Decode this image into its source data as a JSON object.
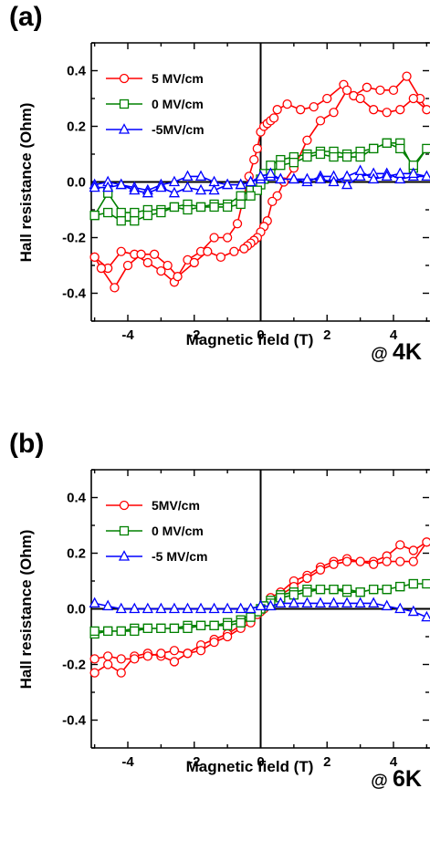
{
  "panels": [
    {
      "label": "(a)",
      "temp_label_prefix": "@ ",
      "temp_label_value": "4K"
    },
    {
      "label": "(b)",
      "temp_label_prefix": "@ ",
      "temp_label_value": "6K"
    }
  ],
  "chart_data": [
    {
      "type": "line",
      "panel": "(a)",
      "xlabel": "Magnetic field (T)",
      "ylabel": "Hall resistance (Ohm)",
      "xlim": [
        -5.1,
        5.1
      ],
      "ylim": [
        -0.5,
        0.5
      ],
      "xticks": [
        -4,
        -2,
        0,
        2,
        4
      ],
      "xtick_labels": [
        "-4",
        "-2",
        "0",
        "2",
        "4"
      ],
      "yticks": [
        -0.4,
        -0.2,
        0.0,
        0.2,
        0.4
      ],
      "ytick_labels": [
        "-0.4",
        "-0.2",
        "0.0",
        "0.2",
        "0.4"
      ],
      "legend_position": "top-left",
      "annotation": "@ 4K",
      "series": [
        {
          "name": "5 MV/cm",
          "color": "#ff0000",
          "marker": "circle",
          "x": [
            -5.0,
            -4.6,
            -4.2,
            -3.8,
            -3.4,
            -3.0,
            -2.6,
            -2.2,
            -1.8,
            -1.4,
            -1.0,
            -0.7,
            -0.5,
            -0.35,
            -0.2,
            -0.1,
            0.0,
            0.1,
            0.2,
            0.3,
            0.4,
            0.5,
            0.8,
            1.2,
            1.6,
            2.0,
            2.5,
            2.8,
            3.2,
            3.6,
            4.0,
            4.4,
            4.8,
            5.0,
            4.6,
            4.2,
            3.8,
            3.4,
            3.0,
            2.6,
            2.2,
            1.8,
            1.4,
            1.0,
            0.7,
            0.5,
            0.35,
            0.2,
            0.1,
            0.0,
            -0.1,
            -0.2,
            -0.3,
            -0.4,
            -0.5,
            -0.8,
            -1.2,
            -1.6,
            -2.0,
            -2.5,
            -2.8,
            -3.2,
            -3.6,
            -4.0,
            -4.4,
            -4.8,
            -5.0
          ],
          "y": [
            -0.27,
            -0.31,
            -0.25,
            -0.26,
            -0.29,
            -0.32,
            -0.36,
            -0.28,
            -0.25,
            -0.2,
            -0.2,
            -0.15,
            -0.05,
            0.02,
            0.08,
            0.12,
            0.18,
            0.2,
            0.21,
            0.22,
            0.23,
            0.26,
            0.28,
            0.26,
            0.27,
            0.3,
            0.35,
            0.31,
            0.34,
            0.33,
            0.33,
            0.38,
            0.3,
            0.26,
            0.3,
            0.26,
            0.25,
            0.26,
            0.3,
            0.33,
            0.25,
            0.22,
            0.15,
            0.05,
            0.0,
            -0.05,
            -0.07,
            -0.14,
            -0.16,
            -0.18,
            -0.2,
            -0.21,
            -0.22,
            -0.23,
            -0.24,
            -0.25,
            -0.27,
            -0.25,
            -0.29,
            -0.34,
            -0.3,
            -0.26,
            -0.26,
            -0.3,
            -0.38,
            -0.31,
            -0.27
          ]
        },
        {
          "name": "0 MV/cm",
          "color": "#008000",
          "marker": "square",
          "x": [
            -5.0,
            -4.6,
            -4.2,
            -3.8,
            -3.4,
            -3.0,
            -2.6,
            -2.2,
            -1.8,
            -1.4,
            -1.0,
            -0.6,
            -0.3,
            -0.1,
            0.0,
            0.1,
            0.3,
            0.6,
            1.0,
            1.4,
            1.8,
            2.2,
            2.6,
            3.0,
            3.4,
            3.8,
            4.2,
            4.6,
            5.0,
            4.6,
            4.2,
            3.8,
            3.4,
            3.0,
            2.6,
            2.2,
            1.8,
            1.4,
            1.0,
            0.6,
            0.3,
            0.1,
            0.0,
            -0.1,
            -0.3,
            -0.6,
            -1.0,
            -1.4,
            -1.8,
            -2.2,
            -2.6,
            -3.0,
            -3.4,
            -3.8,
            -4.2,
            -4.6,
            -5.0
          ],
          "y": [
            -0.12,
            -0.04,
            -0.11,
            -0.11,
            -0.1,
            -0.1,
            -0.09,
            -0.08,
            -0.09,
            -0.08,
            -0.08,
            -0.05,
            -0.03,
            -0.01,
            0.01,
            0.03,
            0.06,
            0.08,
            0.09,
            0.1,
            0.11,
            0.11,
            0.1,
            0.11,
            0.12,
            0.14,
            0.14,
            0.05,
            0.12,
            0.06,
            0.12,
            0.14,
            0.12,
            0.09,
            0.09,
            0.09,
            0.1,
            0.09,
            0.07,
            0.06,
            0.03,
            0.01,
            -0.01,
            -0.03,
            -0.05,
            -0.08,
            -0.09,
            -0.09,
            -0.09,
            -0.1,
            -0.09,
            -0.11,
            -0.12,
            -0.14,
            -0.14,
            -0.11,
            -0.12
          ]
        },
        {
          "name": "-5MV/cm",
          "color": "#0000ff",
          "marker": "triangle",
          "x": [
            -5.0,
            -4.6,
            -4.2,
            -3.8,
            -3.4,
            -3.0,
            -2.6,
            -2.2,
            -1.8,
            -1.4,
            -1.0,
            -0.6,
            -0.3,
            0.0,
            0.3,
            0.6,
            1.0,
            1.4,
            1.8,
            2.2,
            2.6,
            3.0,
            3.4,
            3.8,
            4.2,
            4.6,
            5.0,
            4.6,
            4.2,
            3.8,
            3.4,
            3.0,
            2.6,
            2.2,
            1.8,
            1.4,
            1.0,
            0.6,
            0.3,
            0.0,
            -0.3,
            -0.6,
            -1.0,
            -1.4,
            -1.8,
            -2.2,
            -2.6,
            -3.0,
            -3.4,
            -3.8,
            -4.2,
            -4.6,
            -5.0
          ],
          "y": [
            -0.01,
            0.0,
            -0.01,
            -0.02,
            -0.03,
            -0.01,
            0.0,
            0.02,
            0.02,
            0.0,
            -0.01,
            -0.01,
            0.0,
            0.01,
            0.02,
            0.01,
            0.01,
            0.0,
            0.02,
            0.02,
            -0.01,
            0.02,
            0.03,
            0.03,
            0.01,
            0.02,
            0.02,
            0.03,
            0.03,
            0.02,
            0.01,
            0.04,
            0.02,
            0.0,
            0.01,
            0.01,
            0.01,
            0.01,
            0.03,
            0.02,
            0.0,
            -0.01,
            -0.01,
            -0.03,
            -0.03,
            -0.02,
            -0.04,
            -0.02,
            -0.04,
            -0.03,
            -0.01,
            -0.02,
            -0.02
          ]
        }
      ]
    },
    {
      "type": "line",
      "panel": "(b)",
      "xlabel": "Magnetic field (T)",
      "ylabel": "Hall resistance (Ohm)",
      "xlim": [
        -5.1,
        5.1
      ],
      "ylim": [
        -0.5,
        0.5
      ],
      "xticks": [
        -4,
        -2,
        0,
        2,
        4
      ],
      "xtick_labels": [
        "-4",
        "-2",
        "0",
        "2",
        "4"
      ],
      "yticks": [
        -0.4,
        -0.2,
        0.0,
        0.2,
        0.4
      ],
      "ytick_labels": [
        "-0.4",
        "-0.2",
        "0.0",
        "0.2",
        "0.4"
      ],
      "legend_position": "top-left",
      "annotation": "@ 6K",
      "series": [
        {
          "name": "5MV/cm",
          "color": "#ff0000",
          "marker": "circle",
          "x": [
            -5.0,
            -4.6,
            -4.2,
            -3.8,
            -3.4,
            -3.0,
            -2.6,
            -2.2,
            -1.8,
            -1.4,
            -1.0,
            -0.6,
            -0.3,
            -0.1,
            0.0,
            0.1,
            0.3,
            0.6,
            1.0,
            1.4,
            1.8,
            2.2,
            2.6,
            3.0,
            3.4,
            3.8,
            4.2,
            4.6,
            5.0,
            4.6,
            4.2,
            3.8,
            3.4,
            3.0,
            2.6,
            2.2,
            1.8,
            1.4,
            1.0,
            0.6,
            0.3,
            0.1,
            0.0,
            -0.1,
            -0.3,
            -0.6,
            -1.0,
            -1.4,
            -1.8,
            -2.2,
            -2.6,
            -3.0,
            -3.4,
            -3.8,
            -4.2,
            -4.6,
            -5.0
          ],
          "y": [
            -0.23,
            -0.2,
            -0.23,
            -0.17,
            -0.16,
            -0.17,
            -0.19,
            -0.16,
            -0.13,
            -0.11,
            -0.09,
            -0.06,
            -0.03,
            -0.01,
            0.0,
            0.01,
            0.04,
            0.06,
            0.1,
            0.12,
            0.15,
            0.17,
            0.18,
            0.17,
            0.17,
            0.19,
            0.23,
            0.21,
            0.24,
            0.17,
            0.17,
            0.17,
            0.16,
            0.17,
            0.17,
            0.16,
            0.14,
            0.11,
            0.08,
            0.05,
            0.02,
            0.0,
            -0.01,
            -0.02,
            -0.05,
            -0.07,
            -0.1,
            -0.12,
            -0.15,
            -0.16,
            -0.15,
            -0.16,
            -0.17,
            -0.18,
            -0.18,
            -0.17,
            -0.18
          ]
        },
        {
          "name": "0 MV/cm",
          "color": "#008000",
          "marker": "square",
          "x": [
            -5.0,
            -4.6,
            -4.2,
            -3.8,
            -3.4,
            -3.0,
            -2.6,
            -2.2,
            -1.8,
            -1.4,
            -1.0,
            -0.6,
            -0.3,
            -0.1,
            0.0,
            0.1,
            0.3,
            0.6,
            1.0,
            1.4,
            1.8,
            2.2,
            2.6,
            3.0,
            3.4,
            3.8,
            4.2,
            4.6,
            5.0,
            4.6,
            4.2,
            3.8,
            3.4,
            3.0,
            2.6,
            2.2,
            1.8,
            1.4,
            1.0,
            0.6,
            0.3,
            0.1,
            0.0,
            -0.1,
            -0.3,
            -0.6,
            -1.0,
            -1.4,
            -1.8,
            -2.2,
            -2.6,
            -3.0,
            -3.4,
            -3.8,
            -4.2,
            -4.6,
            -5.0
          ],
          "y": [
            -0.09,
            -0.08,
            -0.08,
            -0.07,
            -0.07,
            -0.07,
            -0.07,
            -0.06,
            -0.06,
            -0.06,
            -0.05,
            -0.04,
            -0.02,
            -0.01,
            0.0,
            0.01,
            0.03,
            0.05,
            0.06,
            0.07,
            0.07,
            0.07,
            0.06,
            0.06,
            0.07,
            0.07,
            0.08,
            0.09,
            0.09,
            0.09,
            0.08,
            0.07,
            0.07,
            0.06,
            0.07,
            0.07,
            0.07,
            0.06,
            0.05,
            0.04,
            0.02,
            0.01,
            0.0,
            -0.01,
            -0.03,
            -0.05,
            -0.06,
            -0.06,
            -0.06,
            -0.07,
            -0.07,
            -0.07,
            -0.07,
            -0.08,
            -0.08,
            -0.08,
            -0.08
          ]
        },
        {
          "name": "-5 MV/cm",
          "color": "#0000ff",
          "marker": "triangle",
          "x": [
            -5.0,
            -4.6,
            -4.2,
            -3.8,
            -3.4,
            -3.0,
            -2.6,
            -2.2,
            -1.8,
            -1.4,
            -1.0,
            -0.6,
            -0.3,
            0.0,
            0.3,
            0.6,
            1.0,
            1.4,
            1.8,
            2.2,
            2.6,
            3.0,
            3.4,
            3.8,
            4.2,
            4.6,
            5.0
          ],
          "y": [
            0.02,
            0.01,
            0.0,
            0.0,
            0.0,
            0.0,
            0.0,
            0.0,
            0.0,
            0.0,
            0.0,
            0.0,
            0.0,
            0.01,
            0.01,
            0.02,
            0.02,
            0.02,
            0.02,
            0.02,
            0.02,
            0.02,
            0.02,
            0.01,
            0.0,
            -0.01,
            -0.03
          ]
        }
      ]
    }
  ]
}
